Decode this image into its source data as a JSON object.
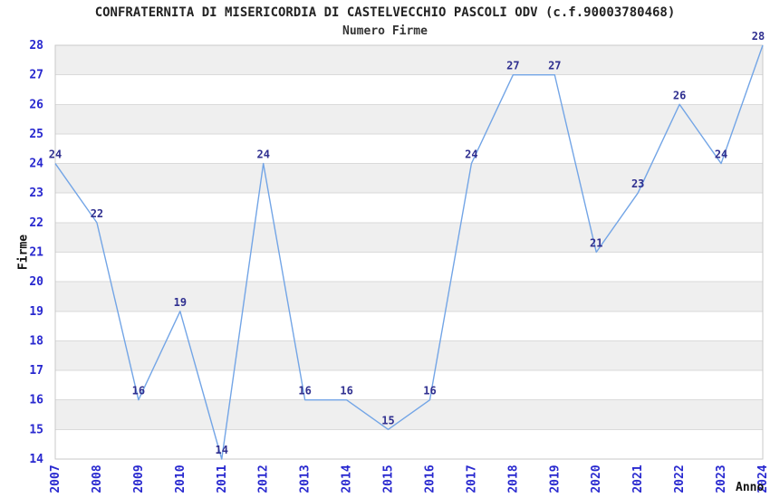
{
  "chart": {
    "title": "CONFRATERNITA DI MISERICORDIA DI CASTELVECCHIO PASCOLI ODV (c.f.90003780468)",
    "subtitle": "Numero Firme",
    "ylabel": "Firme",
    "xlabel": "Anno"
  },
  "chart_data": {
    "type": "line",
    "title": "CONFRATERNITA DI MISERICORDIA DI CASTELVECCHIO PASCOLI ODV (c.f.90003780468)",
    "subtitle": "Numero Firme",
    "xlabel": "Anno",
    "ylabel": "Firme",
    "x": [
      2007,
      2008,
      2009,
      2010,
      2011,
      2012,
      2013,
      2014,
      2015,
      2016,
      2017,
      2018,
      2019,
      2020,
      2021,
      2022,
      2023,
      2024
    ],
    "values": [
      24,
      22,
      16,
      19,
      14,
      24,
      16,
      16,
      15,
      16,
      24,
      27,
      27,
      21,
      23,
      26,
      24,
      28
    ],
    "ylim": [
      14,
      28
    ],
    "yticks": [
      14,
      15,
      16,
      17,
      18,
      19,
      20,
      21,
      22,
      23,
      24,
      25,
      26,
      27,
      28
    ],
    "grid": "horizontal",
    "bands": "alternating-gray",
    "legend_position": "none",
    "point_labels_visible": true
  },
  "colors": {
    "line": "#73A5E6",
    "tick_label": "#2828CF",
    "point_label": "#303090",
    "band": "#EFEFEF",
    "gridline": "#DADADA",
    "border": "#C8C8C8",
    "title_text": "#222222",
    "background": "#FFFFFF"
  }
}
